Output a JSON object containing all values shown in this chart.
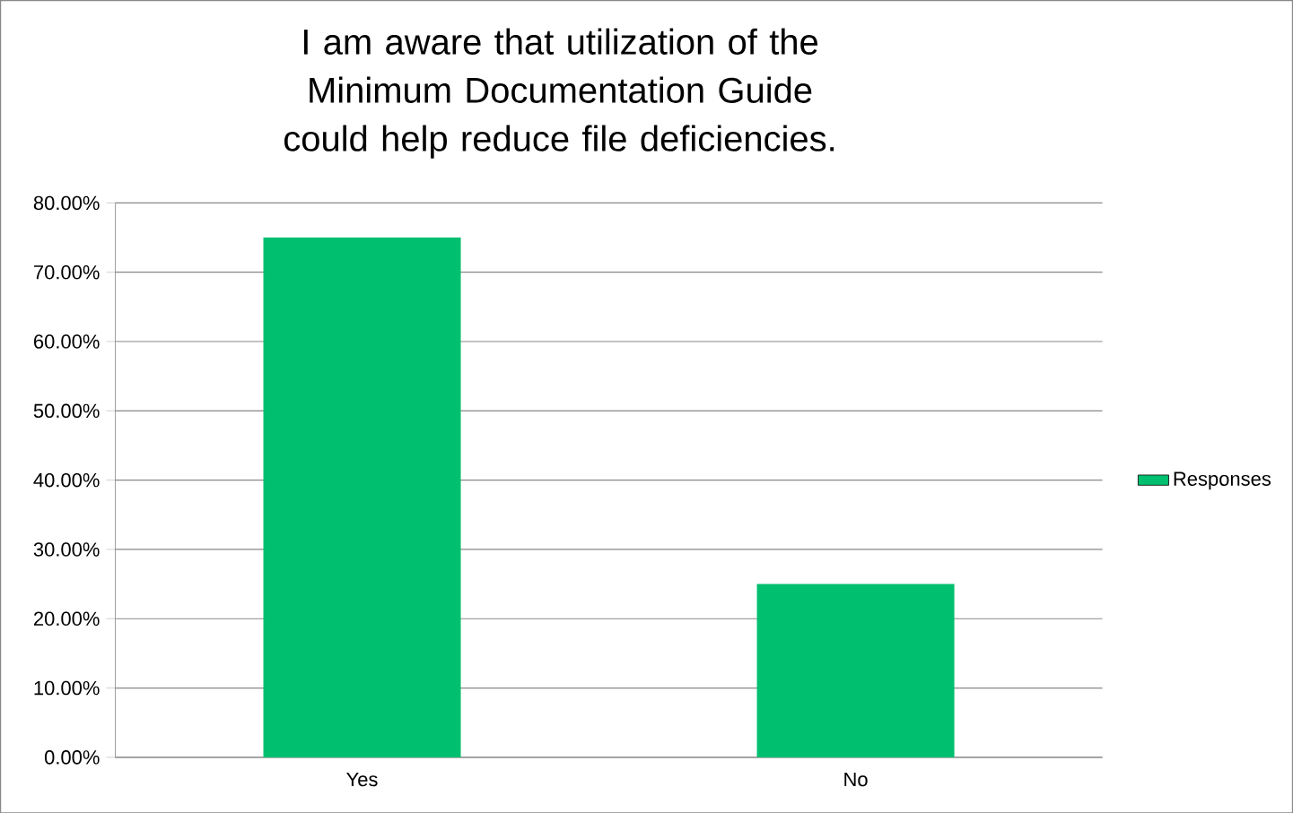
{
  "chart_data": {
    "type": "bar",
    "title": "I am aware that utilization of the Minimum Documentation Guide could help reduce file deficiencies.",
    "categories": [
      "Yes",
      "No"
    ],
    "series": [
      {
        "name": "Responses",
        "color": "#00bf6f",
        "values": [
          75,
          25
        ]
      }
    ],
    "ylim": [
      0,
      80
    ],
    "yticks": [
      {
        "value": 0,
        "label": "0.00%"
      },
      {
        "value": 10,
        "label": "10.00%"
      },
      {
        "value": 20,
        "label": "20.00%"
      },
      {
        "value": 30,
        "label": "30.00%"
      },
      {
        "value": 40,
        "label": "40.00%"
      },
      {
        "value": 50,
        "label": "50.00%"
      },
      {
        "value": 60,
        "label": "60.00%"
      },
      {
        "value": 70,
        "label": "70.00%"
      },
      {
        "value": 80,
        "label": "80.00%"
      }
    ],
    "grid": "y",
    "legend": "right"
  }
}
